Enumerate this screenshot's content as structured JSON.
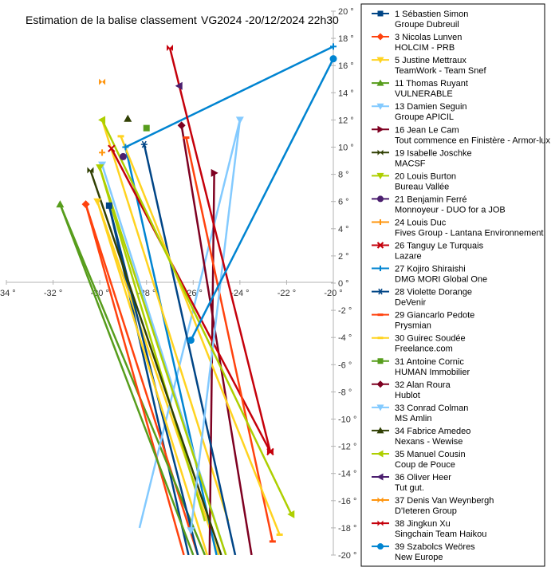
{
  "chart_data": {
    "type": "scatter",
    "title": "Estimation de la balise classement",
    "subtitle": "VG2024 -20/12/2024 22h30",
    "xlabel": "",
    "ylabel": "",
    "xlim": [
      -34,
      -20
    ],
    "ylim": [
      -20,
      20
    ],
    "x_ticks": [
      -34,
      -32,
      -30,
      -28,
      -26,
      -24,
      -22,
      -20
    ],
    "y_ticks": [
      20,
      18,
      16,
      14,
      12,
      10,
      8,
      6,
      4,
      2,
      0,
      -2,
      -4,
      -6,
      -8,
      -10,
      -12,
      -14,
      -16,
      -18,
      -20
    ],
    "x_tick_labels": [
      "-34 °",
      "-32 °",
      "-30 °",
      "-28 °",
      "-26 °",
      "-24 °",
      "-22 °",
      "-20 °"
    ],
    "y_tick_labels": [
      "20 °",
      "18 °",
      "16 °",
      "14 °",
      "12 °",
      "10 °",
      "8 °",
      "6 °",
      "4 °",
      "2 °",
      "0 °",
      "-2 °",
      "-4 °",
      "-6 °",
      "-8 °",
      "-10 °",
      "-12 °",
      "-14 °",
      "-16 °",
      "-18 °",
      "-20 °"
    ],
    "grid": false,
    "legend_position": "right",
    "series": [
      {
        "name": "1 Sébastien Simon",
        "sub": "Groupe Dubreuil",
        "color": "#004586",
        "marker": "square",
        "points": [
          [
            -29.6,
            5.7
          ],
          [
            -25.8,
            -20
          ]
        ]
      },
      {
        "name": "3 Nicolas Lunven",
        "sub": "HOLCIM - PRB",
        "color": "#ff420e",
        "marker": "diamond",
        "points": [
          [
            -30.6,
            5.8
          ],
          [
            -26.4,
            -20
          ]
        ]
      },
      {
        "name": "5 Justine Mettraux",
        "sub": "TeamWork - Team Snef",
        "color": "#ffd320",
        "marker": "tri-down",
        "points": [
          [
            -30.1,
            6.0
          ],
          [
            -25.4,
            -20
          ]
        ]
      },
      {
        "name": "11 Thomas Ruyant",
        "sub": "VULNERABLE",
        "color": "#579d1c",
        "marker": "tri-up",
        "points": [
          [
            -31.7,
            5.8
          ],
          [
            -26.0,
            -20
          ]
        ]
      },
      {
        "name": "13 Damien Seguin",
        "sub": "Groupe APICIL",
        "color": "#83caff",
        "marker": "tri-down",
        "points": [
          [
            -29.9,
            8.7
          ],
          [
            -24.6,
            -20
          ]
        ]
      },
      {
        "name": "16 Jean Le Cam",
        "sub": "Tout commence en Finistère - Armor-lux",
        "color": "#7e0021",
        "marker": "tri-right",
        "points": [
          [
            -25.1,
            8.1
          ],
          [
            -25.3,
            -20
          ]
        ]
      },
      {
        "name": "19 Isabelle Joschke",
        "sub": "MACSF",
        "color": "#314004",
        "marker": "bowtie",
        "points": [
          [
            -30.4,
            8.3
          ],
          [
            -24.8,
            -20
          ]
        ]
      },
      {
        "name": "20 Louis Burton",
        "sub": "Bureau Vallée",
        "color": "#aecf00",
        "marker": "tri-down",
        "points": [
          [
            -30.0,
            8.5
          ],
          [
            -24.6,
            -20
          ]
        ]
      },
      {
        "name": "21 Benjamin Ferré",
        "sub": "Monnoyeur - DUO for a JOB",
        "color": "#4b1f6f",
        "marker": "circle",
        "points": [
          [
            -29.0,
            9.3
          ]
        ]
      },
      {
        "name": "24 Louis Duc",
        "sub": "Fives Group - Lantana Environnement",
        "color": "#ff950e",
        "marker": "plus",
        "points": [
          [
            -29.9,
            9.6
          ]
        ]
      },
      {
        "name": "26 Tanguy Le Turquais",
        "sub": "Lazare",
        "color": "#c5000b",
        "marker": "x",
        "points": [
          [
            -29.5,
            9.9
          ],
          [
            -22.7,
            -12.4
          ]
        ]
      },
      {
        "name": "27 Kojiro Shiraishi",
        "sub": "DMG MORI Global One",
        "color": "#0084d1",
        "marker": "plus",
        "points": [
          [
            -28.9,
            10.0
          ],
          [
            -20,
            17.4
          ]
        ]
      },
      {
        "name": "28 Violette Dorange",
        "sub": "DeVenir",
        "color": "#004586",
        "marker": "asterisk",
        "points": [
          [
            -28.1,
            10.2
          ],
          [
            -24.2,
            -20
          ]
        ]
      },
      {
        "name": "29 Giancarlo Pedote",
        "sub": "Prysmian",
        "color": "#ff420e",
        "marker": "dash",
        "points": [
          [
            -26.3,
            10.7
          ],
          [
            -22.6,
            -19.0
          ]
        ]
      },
      {
        "name": "30 Guirec Soudée",
        "sub": "Freelance.com",
        "color": "#ffd320",
        "marker": "dash",
        "points": [
          [
            -29.1,
            10.8
          ],
          [
            -22.3,
            -18.5
          ]
        ]
      },
      {
        "name": "31 Antoine Cornic",
        "sub": "HUMAN Immobilier",
        "color": "#579d1c",
        "marker": "square",
        "points": [
          [
            -28.0,
            11.4
          ]
        ]
      },
      {
        "name": "32 Alan Roura",
        "sub": "Hublot",
        "color": "#7e0021",
        "marker": "diamond",
        "points": [
          [
            -26.5,
            11.6
          ]
        ]
      },
      {
        "name": "33 Conrad Colman",
        "sub": "MS Amlin",
        "color": "#83caff",
        "marker": "tri-down",
        "points": [
          [
            -24.0,
            12.0
          ],
          [
            -26.1,
            -18.2
          ]
        ]
      },
      {
        "name": "34 Fabrice Amedeo",
        "sub": "Nexans - Wewise",
        "color": "#314004",
        "marker": "tri-up",
        "points": [
          [
            -28.8,
            12.1
          ]
        ]
      },
      {
        "name": "35 Manuel Cousin",
        "sub": "Coup de Pouce",
        "color": "#aecf00",
        "marker": "tri-left",
        "points": [
          [
            -29.9,
            12.0
          ],
          [
            -21.8,
            -17.0
          ]
        ]
      },
      {
        "name": "36 Oliver Heer",
        "sub": "Tut gut.",
        "color": "#4b1f6f",
        "marker": "tri-left",
        "points": [
          [
            -26.6,
            14.5
          ]
        ]
      },
      {
        "name": "37 Denis Van Weynbergh",
        "sub": "D'Ieteren Group",
        "color": "#ff950e",
        "marker": "bowtie",
        "points": [
          [
            -29.9,
            14.8
          ]
        ]
      },
      {
        "name": "38 Jingkun Xu",
        "sub": "Singchain Team Haikou",
        "color": "#c5000b",
        "marker": "bowtie",
        "points": [
          [
            -27.0,
            17.3
          ],
          [
            -22.7,
            -12.4
          ]
        ]
      },
      {
        "name": "39 Szabolcs Weöres",
        "sub": "New Europe",
        "color": "#0084d1",
        "marker": "circle",
        "points": [
          [
            -26.1,
            -4.2
          ],
          [
            -20,
            16.5
          ]
        ]
      }
    ],
    "extra_lines": [
      {
        "color": "#004586",
        "points": [
          [
            -29.6,
            5.7
          ],
          [
            -26.2,
            -20
          ]
        ]
      },
      {
        "color": "#ff420e",
        "points": [
          [
            -30.6,
            5.8
          ],
          [
            -25.8,
            -20
          ]
        ]
      },
      {
        "color": "#ffd320",
        "points": [
          [
            -30.1,
            6.0
          ],
          [
            -24.9,
            -20
          ]
        ]
      },
      {
        "color": "#579d1c",
        "points": [
          [
            -31.7,
            5.8
          ],
          [
            -25.5,
            -20
          ]
        ]
      },
      {
        "color": "#83caff",
        "points": [
          [
            -24.0,
            12.0
          ],
          [
            -28.3,
            -18.0
          ]
        ]
      },
      {
        "color": "#7e0021",
        "points": [
          [
            -26.5,
            11.6
          ],
          [
            -23.5,
            -20
          ]
        ]
      },
      {
        "color": "#0084d1",
        "points": [
          [
            -28.9,
            10.0
          ],
          [
            -25.0,
            -20
          ]
        ]
      },
      {
        "color": "#ffd320",
        "points": [
          [
            -29.9,
            12.0
          ],
          [
            -24.5,
            -17.5
          ]
        ]
      },
      {
        "color": "#aecf00",
        "points": [
          [
            -30.0,
            8.5
          ],
          [
            -25.5,
            -17.5
          ]
        ]
      }
    ]
  }
}
